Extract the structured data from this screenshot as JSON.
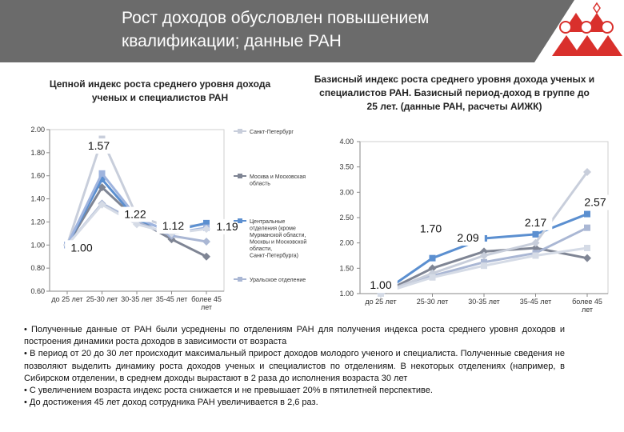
{
  "header": {
    "title": "Рост доходов обусловлен повышением квалификации; данные РАН"
  },
  "chart_data": [
    {
      "type": "line",
      "title": "Цепной индекс роста среднего уровня дохода ученых и специалистов РАН",
      "categories": [
        "до 25 лет",
        "25-30 лет",
        "30-35 лет",
        "35-45 лет",
        "более 45 лет"
      ],
      "ylim": [
        0.6,
        2.0
      ],
      "yticks": [
        "0.60",
        "0.80",
        "1.00",
        "1.20",
        "1.40",
        "1.60",
        "1.80",
        "2.00"
      ],
      "grid": false,
      "legend_position": "right",
      "series": [
        {
          "name": "Санкт-Петербург",
          "values": [
            1.0,
            1.92,
            1.25,
            1.15,
            1.18
          ],
          "color": "#c8cedb"
        },
        {
          "name": "Москва и Московская область",
          "values": [
            1.0,
            1.5,
            1.22,
            1.05,
            0.9
          ],
          "color": "#7f8594"
        },
        {
          "name": "Центральные отделения (кроме Мурманской области, Москвы и Московской области, Санкт-Петербурга)",
          "values": [
            1.0,
            1.57,
            1.22,
            1.12,
            1.19
          ],
          "color": "#5b8fd0"
        },
        {
          "name": "Уральское отделение",
          "values": [
            1.0,
            1.36,
            1.2,
            1.08,
            1.03
          ],
          "color": "#aab7d4"
        },
        {
          "name": "",
          "values": [
            1.0,
            1.62,
            1.24,
            1.1,
            1.15
          ],
          "color": "#9fb4de"
        },
        {
          "name": "",
          "values": [
            1.0,
            1.35,
            1.18,
            1.1,
            1.14
          ],
          "color": "#d5dbe6"
        }
      ],
      "data_labels": [
        {
          "text": "1.00",
          "category": 0,
          "value": 1.0
        },
        {
          "text": "1.57",
          "category": 1,
          "value": 1.57
        },
        {
          "text": "1.22",
          "category": 2,
          "value": 1.22
        },
        {
          "text": "1.12",
          "category": 3,
          "value": 1.12
        },
        {
          "text": "1.19",
          "category": 4,
          "value": 1.19
        }
      ]
    },
    {
      "type": "line",
      "title": "Базисный  индекс роста среднего уровня дохода ученых и специалистов РАН. Базисный период-доход в группе до 25 лет. (данные РАН, расчеты АИЖК)",
      "categories": [
        "до 25 лет",
        "25-30 лет",
        "30-35 лет",
        "35-45 лет",
        "более 45 лет"
      ],
      "ylim": [
        1.0,
        4.0
      ],
      "yticks": [
        "1.00",
        "1.50",
        "2.00",
        "2.50",
        "3.00",
        "3.50",
        "4.00"
      ],
      "grid": false,
      "series": [
        {
          "name": "",
          "values": [
            1.0,
            1.7,
            2.09,
            2.17,
            2.57
          ],
          "color": "#5b8fd0"
        },
        {
          "name": "",
          "values": [
            1.0,
            1.5,
            1.83,
            1.9,
            1.7
          ],
          "color": "#7f8594"
        },
        {
          "name": "",
          "values": [
            1.0,
            1.35,
            1.62,
            1.8,
            2.3
          ],
          "color": "#aab7d4"
        },
        {
          "name": "",
          "values": [
            1.0,
            1.4,
            1.75,
            2.0,
            3.4
          ],
          "color": "#c8cedb"
        },
        {
          "name": "",
          "values": [
            1.0,
            1.32,
            1.55,
            1.75,
            1.9
          ],
          "color": "#d5dbe6"
        }
      ],
      "data_labels": [
        {
          "text": "1.00",
          "category": 0,
          "value": 1.0
        },
        {
          "text": "1.70",
          "category": 1,
          "value": 1.7
        },
        {
          "text": "2.09",
          "category": 2,
          "value": 2.09
        },
        {
          "text": "2.17",
          "category": 3,
          "value": 2.17
        },
        {
          "text": "2.57",
          "category": 4,
          "value": 2.57
        }
      ]
    }
  ],
  "bullets": [
    "•  Полученные данные от РАН были усреднены по отделениям РАН для получения индекса роста среднего уровня доходов и построения динамики роста доходов в зависимости от возраста",
    "•  В период от 20 до 30 лет происходит максимальный прирост доходов молодого ученого и специалиста. Полученные сведения не позволяют выделить динамику роста доходов ученых и специалистов по отделениям. В некоторых отделениях (например, в Сибирском отделении, в среднем доходы вырастают в 2 раза до исполнения возраста 30 лет",
    "•  С увеличением возраста индекс роста снижается  и не превышает 20% в пятилетней перспективе.",
    "•  До достижения 45 лет доход  сотрудника РАН  увеличивается в  2,6 раз."
  ]
}
